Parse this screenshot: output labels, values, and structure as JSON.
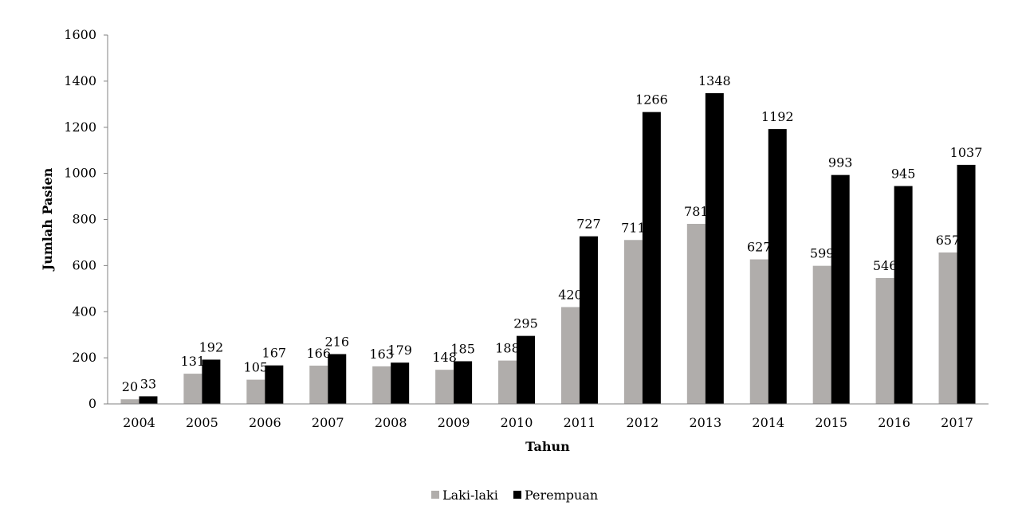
{
  "chart_data": {
    "type": "bar",
    "categories": [
      "2004",
      "2005",
      "2006",
      "2007",
      "2008",
      "2009",
      "2010",
      "2011",
      "2012",
      "2013",
      "2014",
      "2015",
      "2016",
      "2017"
    ],
    "series": [
      {
        "name": "Laki-laki",
        "color": "#b0adab",
        "values": [
          20,
          131,
          105,
          166,
          163,
          148,
          188,
          420,
          711,
          781,
          627,
          599,
          546,
          657
        ]
      },
      {
        "name": "Perempuan",
        "color": "#000000",
        "values": [
          33,
          192,
          167,
          216,
          179,
          185,
          295,
          727,
          1266,
          1348,
          1192,
          993,
          945,
          1037
        ]
      }
    ],
    "title": "",
    "xlabel": "Tahun",
    "ylabel": "Jumlah Pasien",
    "ylim": [
      0,
      1600
    ],
    "yticks": [
      0,
      200,
      400,
      600,
      800,
      1000,
      1200,
      1400,
      1600
    ],
    "grid": false,
    "legend_position": "bottom-center"
  }
}
